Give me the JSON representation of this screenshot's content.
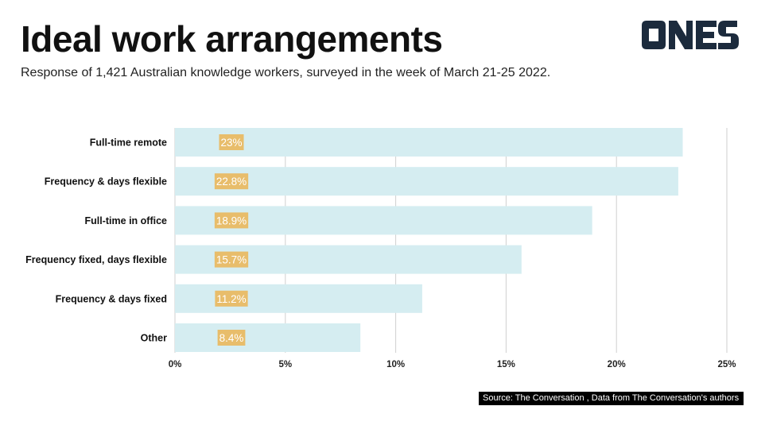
{
  "header": {
    "title": "Ideal work arrangements",
    "subtitle": "Response of 1,421 Australian knowledge workers, surveyed in the week of March 21-25 2022."
  },
  "logo": {
    "text": "ONES",
    "color": "#1c2b3d"
  },
  "footer": {
    "source": "Source: The Conversation , Data from The Conversation's authors"
  },
  "colors": {
    "bar": "#d5edf1",
    "label_bg": "#e8bd6b",
    "grid": "#cfcfcf"
  },
  "chart_data": {
    "type": "bar",
    "orientation": "horizontal",
    "categories": [
      "Full-time remote",
      "Frequency & days flexible",
      "Full-time in office",
      "Frequency fixed, days flexible",
      "Frequency & days fixed",
      "Other"
    ],
    "values": [
      23,
      22.8,
      18.9,
      15.7,
      11.2,
      8.4
    ],
    "value_labels": [
      "23%",
      "22.8%",
      "18.9%",
      "15.7%",
      "11.2%",
      "8.4%"
    ],
    "xticks": [
      0,
      5,
      10,
      15,
      20,
      25
    ],
    "xtick_labels": [
      "0%",
      "5%",
      "10%",
      "15%",
      "20%",
      "25%"
    ],
    "xlim": [
      0,
      25
    ],
    "grid": true
  }
}
